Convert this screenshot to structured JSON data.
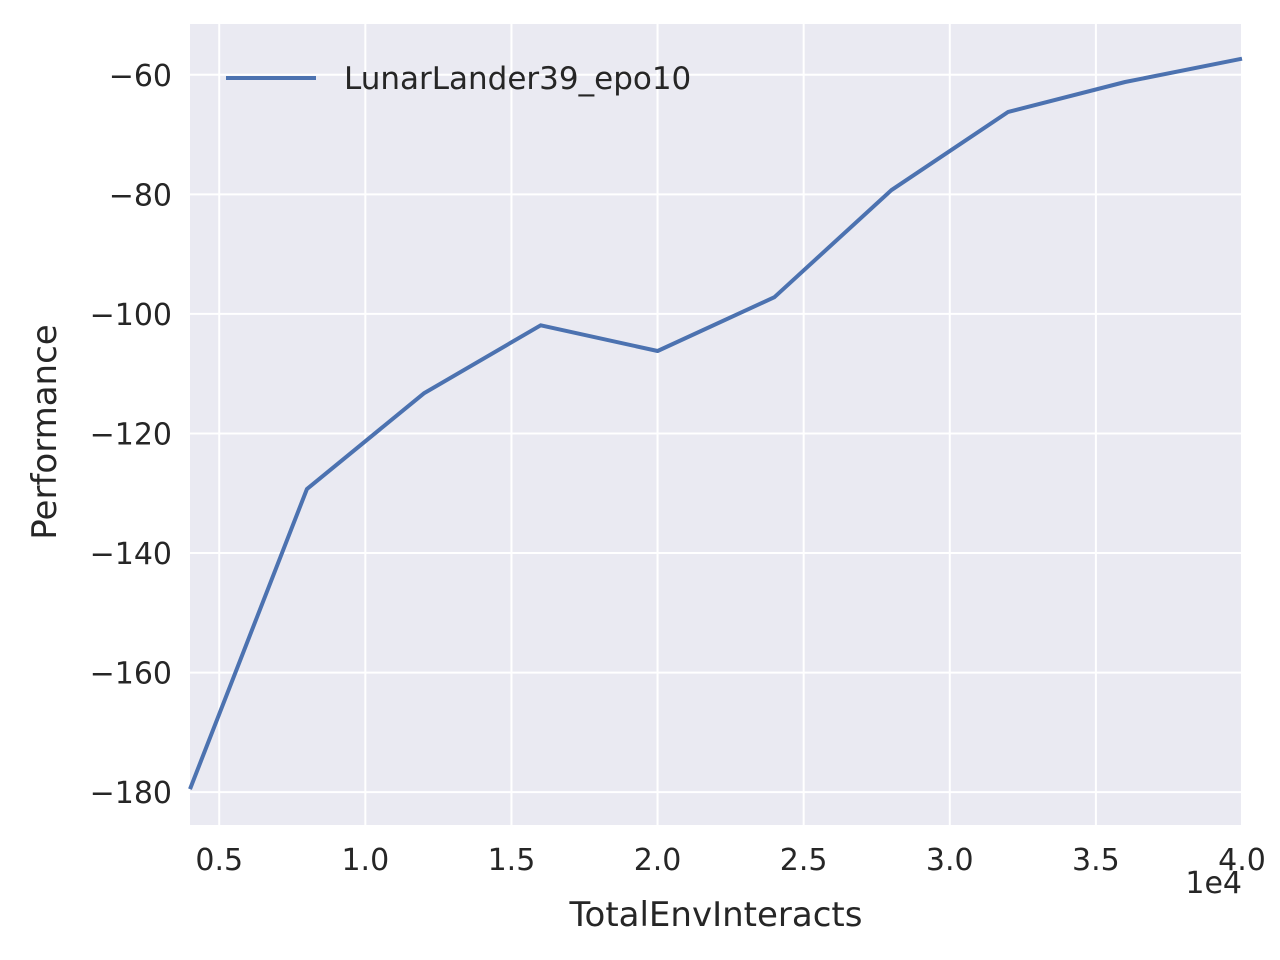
{
  "chart_data": {
    "type": "line",
    "xlabel": "TotalEnvInteracts",
    "ylabel": "Performance",
    "x_offset_label": "1e4",
    "xlim": [
      0.4,
      4.0
    ],
    "ylim": [
      -185.5,
      -51.5
    ],
    "x_ticks": [
      0.5,
      1.0,
      1.5,
      2.0,
      2.5,
      3.0,
      3.5,
      4.0
    ],
    "x_tick_labels": [
      "0.5",
      "1.0",
      "1.5",
      "2.0",
      "2.5",
      "3.0",
      "3.5",
      "4.0"
    ],
    "y_ticks": [
      -180,
      -160,
      -140,
      -120,
      -100,
      -80,
      -60
    ],
    "y_tick_labels": [
      "−180",
      "−160",
      "−140",
      "−120",
      "−100",
      "−80",
      "−60"
    ],
    "grid": true,
    "legend_position": "top-left",
    "colors": {
      "background": "#eaeaf2",
      "grid": "#ffffff",
      "series": "#4c72b0"
    },
    "series": [
      {
        "name": "LunarLander39_epo10",
        "x": [
          0.4,
          0.8,
          1.2,
          1.6,
          2.0,
          2.4,
          2.8,
          3.2,
          3.6,
          4.0
        ],
        "values": [
          -179.5,
          -129.3,
          -113.3,
          -101.9,
          -106.2,
          -97.2,
          -79.3,
          -66.2,
          -61.2,
          -57.3
        ]
      }
    ]
  }
}
